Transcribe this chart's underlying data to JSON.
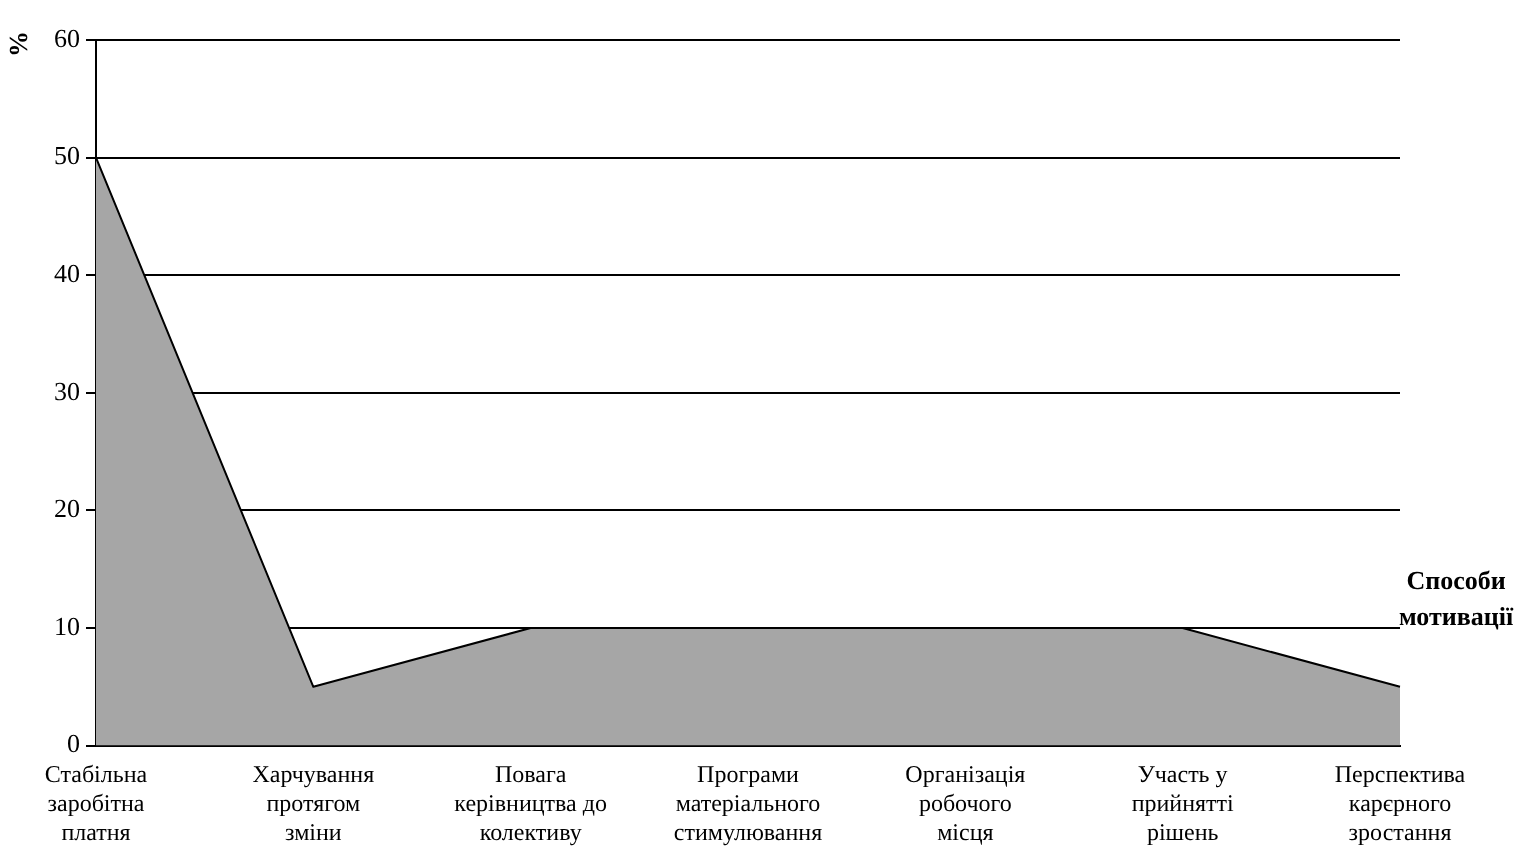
{
  "chart_data": {
    "type": "area",
    "xlabel": "Способи\nмотивації",
    "ylabel": "%",
    "categories": [
      "Стабільна\nзаробітна\nплатня",
      "Харчування\nпротягом\nзміни",
      "Повага\nкерівництва до\nколективу",
      "Програми\nматеріального\nстимулювання",
      "Організація\nробочого\nмісця",
      "Участь у\nприйнятті\nрішень",
      "Перспектива\nкарєрного\nзростання"
    ],
    "values": [
      50,
      5,
      10,
      10,
      10,
      10,
      5
    ],
    "color": "#a6a6a6",
    "ylim": [
      0,
      60
    ],
    "yticks": [
      0,
      10,
      20,
      30,
      40,
      50,
      60
    ],
    "grid": "y"
  }
}
